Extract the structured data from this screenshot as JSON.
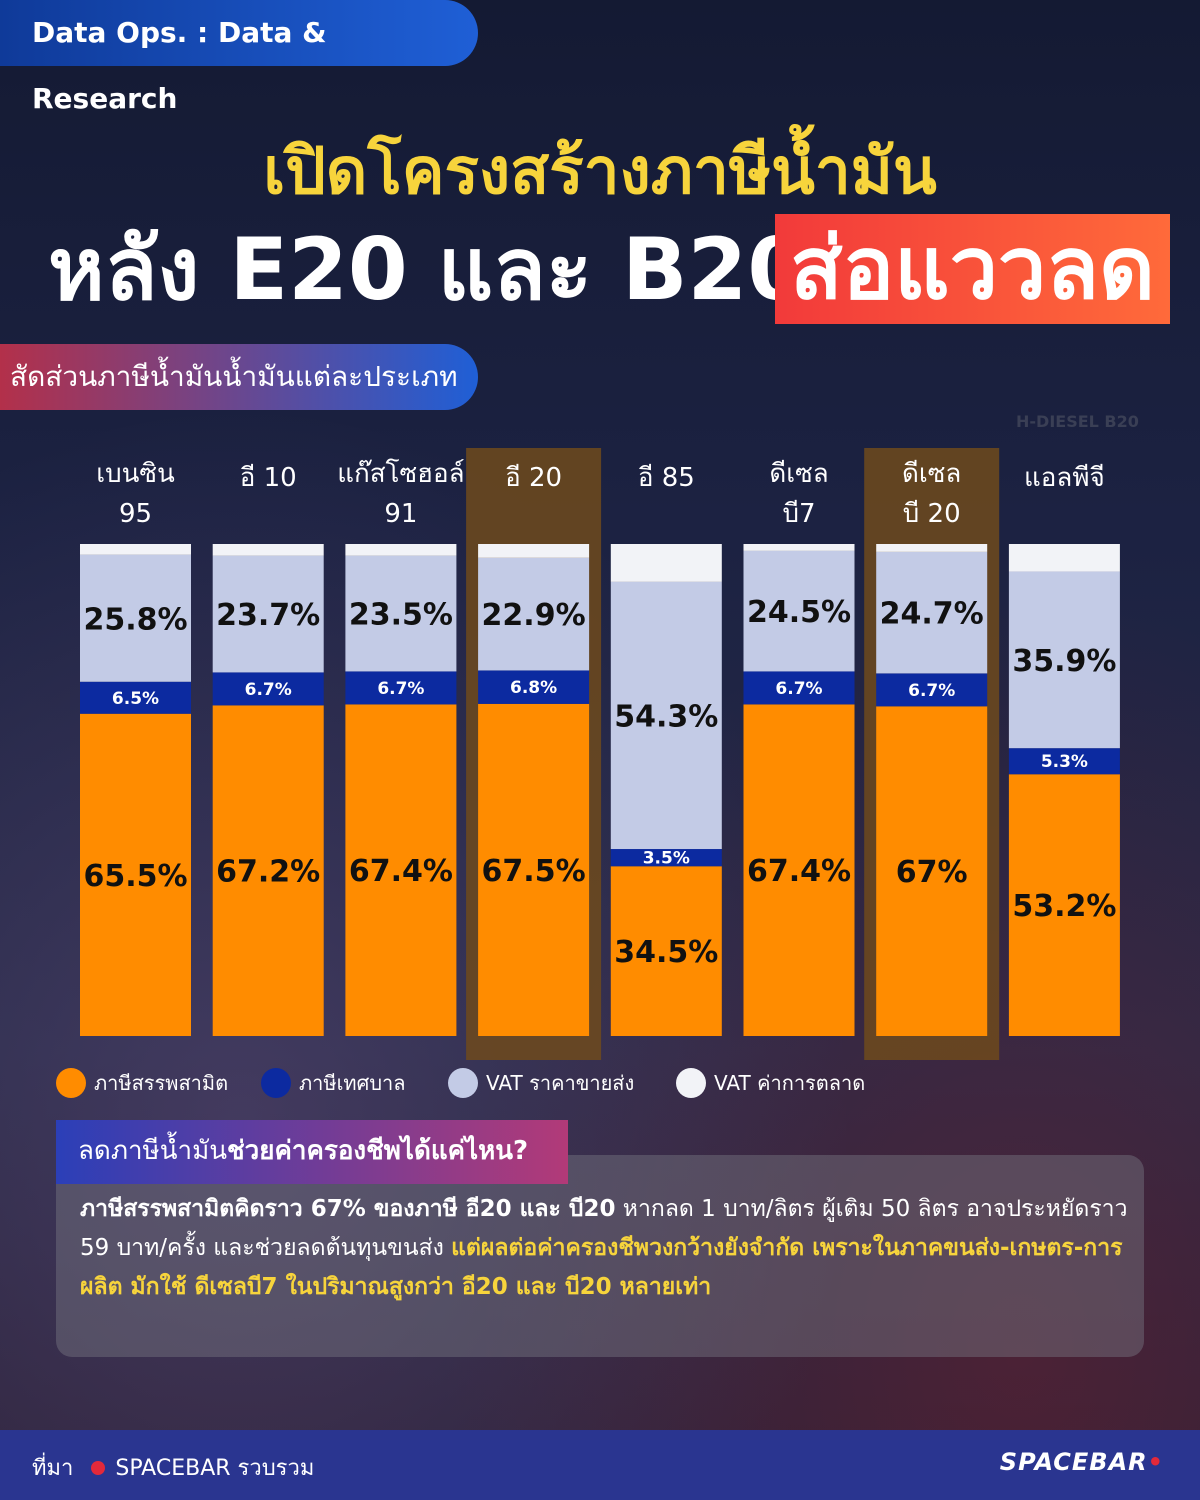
{
  "header": {
    "tag": "Data Ops.  : Data & Research",
    "title_line1": "เปิดโครงสร้างภาษีน้ำมัน",
    "title_line2": "หลัง E20 และ B20",
    "title_badge": "ส่อแววลด",
    "section_tag": "สัดส่วนภาษีน้ำมันน้ำมันแต่ละประเภท",
    "small_note": "H-DIESEL B20"
  },
  "chart_data": {
    "type": "bar",
    "stacked": true,
    "categories": [
      [
        "เบนซิน",
        "95"
      ],
      [
        "อี 10"
      ],
      [
        "แก๊สโซฮอล์",
        "91"
      ],
      [
        "อี 20"
      ],
      [
        "อี 85"
      ],
      [
        "ดีเซล",
        "บี7"
      ],
      [
        "ดีเซล",
        "บี 20"
      ],
      [
        "แอลพีจี"
      ]
    ],
    "highlighted": [
      3,
      6
    ],
    "series": [
      {
        "name": "ภาษีสรรพสามิต",
        "color": "#ff8c00",
        "values": [
          65.5,
          67.2,
          67.4,
          67.5,
          34.5,
          67.4,
          67.0,
          53.2
        ],
        "labels": [
          "65.5%",
          "67.2%",
          "67.4%",
          "67.5%",
          "34.5%",
          "67.4%",
          "67%",
          "53.2%"
        ]
      },
      {
        "name": "ภาษีเทศบาล",
        "color": "#0c2aa0",
        "values": [
          6.5,
          6.7,
          6.7,
          6.8,
          3.5,
          6.7,
          6.7,
          5.3
        ],
        "labels": [
          "6.5%",
          "6.7%",
          "6.7%",
          "6.8%",
          "3.5%",
          "6.7%",
          "6.7%",
          "5.3%"
        ]
      },
      {
        "name": "VAT ราคาขายส่ง",
        "color": "#c3cbe6",
        "values": [
          25.8,
          23.7,
          23.5,
          22.9,
          54.3,
          24.5,
          24.7,
          35.9
        ],
        "labels": [
          "25.8%",
          "23.7%",
          "23.5%",
          "22.9%",
          "54.3%",
          "24.5%",
          "24.7%",
          "35.9%"
        ]
      },
      {
        "name": "VAT ค่าการตลาด",
        "color": "#f2f3f7",
        "values": [
          2.2,
          2.4,
          2.4,
          2.8,
          7.7,
          1.4,
          1.6,
          5.6
        ]
      }
    ],
    "ylim": [
      0,
      100
    ]
  },
  "info": {
    "header_prefix": "ลดภาษีน้ำมัน",
    "header_bold": "ช่วยค่าครองชีพได้แค่ไหน?",
    "p1_bold": "ภาษีสรรพสามิตคิดราว 67% ของภาษี  อี20 และ บี20",
    "p1_rest": " หากลด 1 บาท/ลิตร ผู้เติม 50 ลิตร อาจประหยัดราว 59 บาท/ครั้ง และช่วยลดต้นทุนขนส่ง ",
    "p1_yellow": "แต่ผลต่อค่าครองชีพวงกว้างยังจำกัด เพราะในภาคขนส่ง-เกษตร-การผลิต มักใช้ ดีเซลบี7 ในปริมาณสูงกว่า อี20 และ บี20 หลายเท่า"
  },
  "footer": {
    "source_label": "ที่มา",
    "source": "SPACEBAR รวบรวม",
    "logo": "SPACEBAR",
    "logo_dot": "•"
  },
  "colors": {
    "title_yellow": "#f7d43c",
    "badge_red": "#f23a3a",
    "highlight_column": "#6e4a1c"
  }
}
